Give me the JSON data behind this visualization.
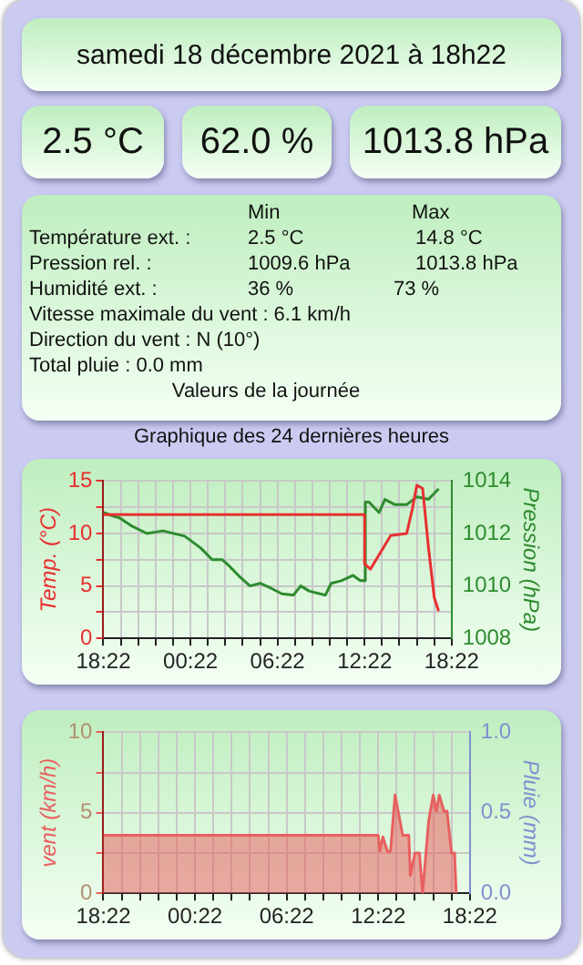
{
  "chart_data": [
    {
      "type": "other",
      "title": "samedi 18 décembre 2021 à 18h22"
    },
    {
      "type": "other",
      "annotations": [
        "2.5 °C",
        "62.0 %",
        "1013.8 hPa"
      ]
    },
    {
      "type": "other",
      "annotations": [
        "Min",
        "Max",
        "Température ext. :",
        "2.5 °C",
        "14.8 °C",
        "Pression rel. :",
        "1009.6 hPa",
        "1013.8 hPa",
        "Humidité ext. :",
        "36 %",
        "73 %",
        "Vitesse maximale du vent : 6.1 km/h",
        "Direction du vent : N (10°)",
        "Total pluie : 0.0 mm",
        "Valeurs de la journée"
      ]
    },
    {
      "type": "line",
      "title": "Graphique des 24 dernières heures",
      "ylabel": "Temp. (°C)",
      "y2label": "Pression (hPa)",
      "marker": "none",
      "grid": true,
      "xlim": [
        "2021-12-17T18:22",
        "2021-12-18T18:22"
      ],
      "xticks": [
        {
          "value": "2021-12-17T18:22",
          "label": "18:22"
        },
        {
          "value": "2021-12-17T19:34",
          "label": null
        },
        {
          "value": "2021-12-17T20:46",
          "label": null
        },
        {
          "value": "2021-12-17T21:58",
          "label": null
        },
        {
          "value": "2021-12-17T23:10",
          "label": null
        },
        {
          "value": "2021-12-18T00:22",
          "label": "00:22"
        },
        {
          "value": "2021-12-18T01:34",
          "label": null
        },
        {
          "value": "2021-12-18T02:46",
          "label": null
        },
        {
          "value": "2021-12-18T03:58",
          "label": null
        },
        {
          "value": "2021-12-18T05:10",
          "label": null
        },
        {
          "value": "2021-12-18T06:22",
          "label": "06:22"
        },
        {
          "value": "2021-12-18T07:34",
          "label": null
        },
        {
          "value": "2021-12-18T08:46",
          "label": null
        },
        {
          "value": "2021-12-18T09:58",
          "label": null
        },
        {
          "value": "2021-12-18T11:10",
          "label": null
        },
        {
          "value": "2021-12-18T12:22",
          "label": "12:22"
        },
        {
          "value": "2021-12-18T13:34",
          "label": null
        },
        {
          "value": "2021-12-18T14:46",
          "label": null
        },
        {
          "value": "2021-12-18T15:58",
          "label": null
        },
        {
          "value": "2021-12-18T17:10",
          "label": null
        },
        {
          "value": "2021-12-18T18:22",
          "label": "18:22"
        }
      ],
      "ylim": [
        0,
        15
      ],
      "yticks": [
        0,
        {
          "value": 2.5,
          "label": null
        },
        5,
        {
          "value": 7.5,
          "label": null
        },
        10,
        {
          "value": 12.5,
          "label": null
        },
        15
      ],
      "y2lim": [
        1008,
        1014
      ],
      "y2ticks": [
        1008,
        {
          "value": 1009,
          "label": null
        },
        1010,
        {
          "value": 1011,
          "label": null
        },
        1012,
        {
          "value": 1013,
          "label": null
        },
        1014
      ],
      "series": [
        {
          "color": "#e83030",
          "x": [
            "2021-12-17T18:22",
            "2021-12-18T12:22",
            "2021-12-18T12:22",
            "2021-12-18T12:46",
            "2021-12-18T14:10",
            "2021-12-18T15:16",
            "2021-12-18T15:40",
            "2021-12-18T15:58",
            "2021-12-18T16:22",
            "2021-12-18T16:46",
            "2021-12-18T17:10",
            "2021-12-18T17:28"
          ],
          "values": [
            11.8,
            11.8,
            7.1,
            6.6,
            9.8,
            10.0,
            12.4,
            14.6,
            14.3,
            8.7,
            3.9,
            2.6
          ]
        },
        {
          "color": "#2e8b2e",
          "axis": "y2",
          "x": [
            "2021-12-17T18:22",
            "2021-12-17T19:07",
            "2021-12-17T19:28",
            "2021-12-17T20:16",
            "2021-12-17T21:22",
            "2021-12-17T22:28",
            "2021-12-17T23:58",
            "2021-12-18T01:04",
            "2021-12-18T01:52",
            "2021-12-18T02:34",
            "2021-12-18T02:58",
            "2021-12-18T03:40",
            "2021-12-18T04:28",
            "2021-12-18T05:10",
            "2021-12-18T05:58",
            "2021-12-18T06:40",
            "2021-12-18T07:28",
            "2021-12-18T07:58",
            "2021-12-18T08:34",
            "2021-12-18T09:40",
            "2021-12-18T10:04",
            "2021-12-18T10:46",
            "2021-12-18T11:34",
            "2021-12-18T12:04",
            "2021-12-18T12:22",
            "2021-12-18T12:25",
            "2021-12-18T12:40",
            "2021-12-18T13:22",
            "2021-12-18T13:46",
            "2021-12-18T14:28",
            "2021-12-18T15:16",
            "2021-12-18T15:58",
            "2021-12-18T16:46",
            "2021-12-18T17:28"
          ],
          "values": [
            1012.8,
            1012.65,
            1012.6,
            1012.3,
            1012.0,
            1012.1,
            1011.9,
            1011.45,
            1011.0,
            1011.0,
            1010.8,
            1010.4,
            1010.0,
            1010.1,
            1009.9,
            1009.7,
            1009.65,
            1010.0,
            1009.8,
            1009.65,
            1010.1,
            1010.2,
            1010.4,
            1010.2,
            1010.2,
            1013.2,
            1013.2,
            1012.8,
            1013.3,
            1013.1,
            1013.1,
            1013.4,
            1013.3,
            1013.7
          ]
        }
      ]
    },
    {
      "type": "area",
      "ylabel": "vent (km/h)",
      "y2label": "Pluie (mm)",
      "marker": "none",
      "grid": true,
      "xlim": [
        "2021-12-17T18:22",
        "2021-12-18T18:22"
      ],
      "xticks": [
        {
          "value": "2021-12-17T18:22",
          "label": "18:22"
        },
        {
          "value": "2021-12-17T19:34",
          "label": null
        },
        {
          "value": "2021-12-17T20:46",
          "label": null
        },
        {
          "value": "2021-12-17T21:58",
          "label": null
        },
        {
          "value": "2021-12-17T23:10",
          "label": null
        },
        {
          "value": "2021-12-18T00:22",
          "label": "00:22"
        },
        {
          "value": "2021-12-18T01:34",
          "label": null
        },
        {
          "value": "2021-12-18T02:46",
          "label": null
        },
        {
          "value": "2021-12-18T03:58",
          "label": null
        },
        {
          "value": "2021-12-18T05:10",
          "label": null
        },
        {
          "value": "2021-12-18T06:22",
          "label": "06:22"
        },
        {
          "value": "2021-12-18T07:34",
          "label": null
        },
        {
          "value": "2021-12-18T08:46",
          "label": null
        },
        {
          "value": "2021-12-18T09:58",
          "label": null
        },
        {
          "value": "2021-12-18T11:10",
          "label": null
        },
        {
          "value": "2021-12-18T12:22",
          "label": "12:22"
        },
        {
          "value": "2021-12-18T13:34",
          "label": null
        },
        {
          "value": "2021-12-18T14:46",
          "label": null
        },
        {
          "value": "2021-12-18T15:58",
          "label": null
        },
        {
          "value": "2021-12-18T17:10",
          "label": null
        },
        {
          "value": "2021-12-18T18:22",
          "label": "18:22"
        }
      ],
      "ylim": [
        0,
        10
      ],
      "yticks": [
        0,
        {
          "value": 2.5,
          "label": null
        },
        5,
        {
          "value": 7.5,
          "label": null
        },
        10
      ],
      "y2lim": [
        0,
        1
      ],
      "y2ticks": [
        {
          "value": 0,
          "label": "0.0"
        },
        {
          "value": 0.25,
          "label": null
        },
        {
          "value": 0.5,
          "label": "0.5"
        },
        {
          "value": 0.75,
          "label": null
        },
        {
          "value": 1,
          "label": "1.0"
        }
      ],
      "series": [
        {
          "color": "#e86060",
          "x": [
            "2021-12-17T18:22",
            "2021-12-18T12:22",
            "2021-12-18T12:28",
            "2021-12-18T12:40",
            "2021-12-18T12:58",
            "2021-12-18T13:10",
            "2021-12-18T13:28",
            "2021-12-18T13:40",
            "2021-12-18T13:58",
            "2021-12-18T14:22",
            "2021-12-18T14:28",
            "2021-12-18T14:46",
            "2021-12-18T15:04",
            "2021-12-18T15:16",
            "2021-12-18T15:40",
            "2021-12-18T15:58",
            "2021-12-18T16:10",
            "2021-12-18T16:22",
            "2021-12-18T16:40",
            "2021-12-18T16:52",
            "2021-12-18T17:10",
            "2021-12-18T17:22",
            "2021-12-18T17:28"
          ],
          "values": [
            3.6,
            3.6,
            2.6,
            3.5,
            2.6,
            2.6,
            6.1,
            5.1,
            3.6,
            3.6,
            1.1,
            2.5,
            2.5,
            0,
            4.5,
            6.1,
            5.1,
            6.1,
            5.1,
            5.1,
            2.5,
            2.5,
            0
          ]
        }
      ]
    }
  ]
}
